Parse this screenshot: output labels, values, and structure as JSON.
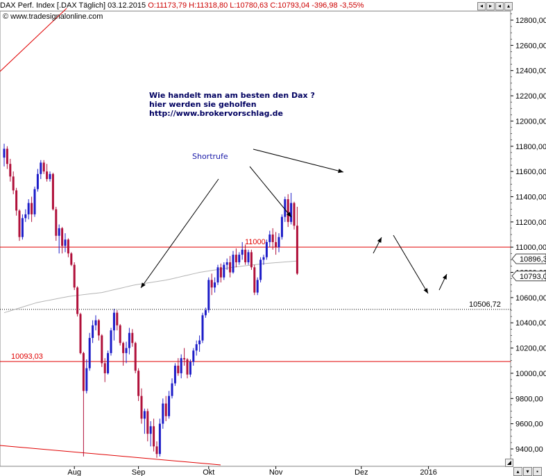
{
  "header": {
    "instrument": "DAX Perf. Index [.DAX  Täglich] 03.12.2015",
    "ohlc": "O:11173,79 H:11318,80 L:10780,63 C:10793,04 -396,98 -3,55%"
  },
  "watermark": "© www.tradesignalonline.com",
  "annotation_lines": [
    "Wie handelt man am besten  den Dax ?",
    "hier werden sie geholfen",
    "http://www.brokervorschlag.de"
  ],
  "shortrufe_label": "Shortrufe",
  "window_buttons": [
    "◂",
    "▸",
    "◂",
    "▴"
  ],
  "colors": {
    "up": "#1c1cc8",
    "down": "#b0103a",
    "hline": "#e00000",
    "ma": "#b4b4b4",
    "grid": "#d0d0d0"
  },
  "chart_data": {
    "type": "candlestick",
    "ylim": [
      9300,
      12950
    ],
    "y_ticks": [
      9400,
      9600,
      9800,
      10000,
      10200,
      10400,
      10600,
      10800,
      11000,
      11200,
      11400,
      11600,
      11800,
      12000,
      12200,
      12400,
      12600,
      12800
    ],
    "y_tick_labels": [
      "9400,00",
      "9600,00",
      "9800,00",
      "10000,00",
      "10200,00",
      "10400,00",
      "10600,00",
      "10800,00",
      "11000,00",
      "11200,00",
      "11400,00",
      "11600,00",
      "11800,00",
      "12000,00",
      "12200,00",
      "12400,00",
      "12600,00",
      "12800,00"
    ],
    "x_labels": [
      {
        "label": "Aug",
        "index": 23
      },
      {
        "label": "Sep",
        "index": 44
      },
      {
        "label": "Okt",
        "index": 67
      },
      {
        "label": "Nov",
        "index": 89
      },
      {
        "label": "Dez",
        "index": 117
      },
      {
        "label": "2016",
        "index": 139
      }
    ],
    "candles": [
      [
        11710,
        11820,
        11640,
        11780
      ],
      [
        11780,
        11800,
        11620,
        11660
      ],
      [
        11660,
        11700,
        11520,
        11560
      ],
      [
        11560,
        11600,
        11420,
        11450
      ],
      [
        11450,
        11470,
        11250,
        11290
      ],
      [
        11290,
        11300,
        11050,
        11080
      ],
      [
        11080,
        11260,
        11060,
        11230
      ],
      [
        11230,
        11300,
        11200,
        11260
      ],
      [
        11260,
        11380,
        11220,
        11350
      ],
      [
        11350,
        11400,
        11200,
        11260
      ],
      [
        11260,
        11480,
        11240,
        11460
      ],
      [
        11460,
        11620,
        11440,
        11580
      ],
      [
        11580,
        11690,
        11540,
        11670
      ],
      [
        11670,
        11690,
        11580,
        11600
      ],
      [
        11600,
        11660,
        11520,
        11540
      ],
      [
        11540,
        11600,
        11520,
        11580
      ],
      [
        11580,
        11590,
        11290,
        11300
      ],
      [
        11300,
        11320,
        11050,
        11090
      ],
      [
        11090,
        11180,
        10950,
        11150
      ],
      [
        11150,
        11160,
        10950,
        11010
      ],
      [
        11010,
        11110,
        10960,
        11060
      ],
      [
        11060,
        11070,
        10920,
        10950
      ],
      [
        10950,
        10960,
        10850,
        10860
      ],
      [
        10860,
        10880,
        10660,
        10680
      ],
      [
        10680,
        10690,
        10450,
        10470
      ],
      [
        10470,
        10480,
        10150,
        10160
      ],
      [
        10160,
        10170,
        9340,
        9860
      ],
      [
        9860,
        10110,
        9840,
        10040
      ],
      [
        10040,
        10320,
        10020,
        10280
      ],
      [
        10280,
        10420,
        10240,
        10380
      ],
      [
        10380,
        10460,
        10340,
        10420
      ],
      [
        10420,
        10430,
        10260,
        10300
      ],
      [
        10300,
        10310,
        10050,
        10080
      ],
      [
        10080,
        10120,
        9930,
        10000
      ],
      [
        10000,
        10180,
        9990,
        10160
      ],
      [
        10160,
        10360,
        10140,
        10340
      ],
      [
        10340,
        10510,
        10260,
        10480
      ],
      [
        10480,
        10500,
        10340,
        10380
      ],
      [
        10380,
        10390,
        10220,
        10240
      ],
      [
        10240,
        10250,
        10060,
        10160
      ],
      [
        10160,
        10250,
        10080,
        10200
      ],
      [
        10200,
        10360,
        10150,
        10320
      ],
      [
        10320,
        10350,
        10210,
        10240
      ],
      [
        10240,
        10250,
        10000,
        10020
      ],
      [
        10020,
        10040,
        9780,
        9820
      ],
      [
        9820,
        9880,
        9600,
        9640
      ],
      [
        9640,
        9720,
        9520,
        9700
      ],
      [
        9700,
        9720,
        9460,
        9520
      ],
      [
        9520,
        9620,
        9420,
        9580
      ],
      [
        9580,
        9640,
        9380,
        9420
      ],
      [
        9420,
        9460,
        9330,
        9360
      ],
      [
        9360,
        9640,
        9340,
        9600
      ],
      [
        9600,
        9800,
        9560,
        9760
      ],
      [
        9760,
        9820,
        9620,
        9660
      ],
      [
        9660,
        9860,
        9640,
        9820
      ],
      [
        9820,
        9960,
        9800,
        9920
      ],
      [
        9920,
        10080,
        9900,
        10060
      ],
      [
        10060,
        10120,
        9980,
        10000
      ],
      [
        10000,
        10150,
        9960,
        10120
      ],
      [
        10120,
        10200,
        10060,
        10110
      ],
      [
        10110,
        10120,
        9960,
        9990
      ],
      [
        9990,
        10110,
        9970,
        10090
      ],
      [
        10090,
        10200,
        10060,
        10180
      ],
      [
        10180,
        10260,
        10140,
        10230
      ],
      [
        10230,
        10300,
        10170,
        10260
      ],
      [
        10260,
        10480,
        10240,
        10460
      ],
      [
        10460,
        10520,
        10440,
        10500
      ],
      [
        10500,
        10760,
        10480,
        10740
      ],
      [
        10740,
        10790,
        10620,
        10680
      ],
      [
        10680,
        10760,
        10640,
        10720
      ],
      [
        10720,
        10860,
        10700,
        10840
      ],
      [
        10840,
        10870,
        10720,
        10760
      ],
      [
        10760,
        10880,
        10740,
        10860
      ],
      [
        10860,
        10910,
        10820,
        10880
      ],
      [
        10880,
        10930,
        10760,
        10800
      ],
      [
        10800,
        10970,
        10790,
        10940
      ],
      [
        10940,
        10990,
        10840,
        10880
      ],
      [
        10880,
        10960,
        10860,
        10940
      ],
      [
        10940,
        11040,
        10900,
        10980
      ],
      [
        10980,
        11020,
        10860,
        10880
      ],
      [
        10880,
        10980,
        10860,
        10960
      ],
      [
        10960,
        10980,
        10820,
        10840
      ],
      [
        10840,
        10860,
        10620,
        10640
      ],
      [
        10640,
        10760,
        10620,
        10740
      ],
      [
        10740,
        10920,
        10720,
        10900
      ],
      [
        10900,
        10940,
        10860,
        10920
      ],
      [
        10920,
        11060,
        10900,
        11040
      ],
      [
        11040,
        11130,
        11000,
        11100
      ],
      [
        11100,
        11150,
        10980,
        11040
      ],
      [
        11040,
        11120,
        10940,
        11000
      ],
      [
        11000,
        11110,
        10960,
        11080
      ],
      [
        11080,
        11260,
        11060,
        11240
      ],
      [
        11240,
        11400,
        11200,
        11380
      ],
      [
        11380,
        11420,
        11160,
        11200
      ],
      [
        11200,
        11430,
        11180,
        11350
      ],
      [
        11350,
        11360,
        11140,
        11170
      ],
      [
        11170,
        11320,
        10780,
        10790
      ]
    ],
    "ma_values": [
      10480,
      10560,
      10610,
      10640,
      10700,
      10740,
      10800,
      10840,
      10870,
      10890
    ],
    "horizontal_lines": [
      {
        "value": 11000,
        "label": "11000",
        "style": "solid"
      },
      {
        "value": 10093.03,
        "label": "10093,03",
        "style": "solid"
      },
      {
        "value": 10506.72,
        "label": "10506,72",
        "style": "dotted"
      }
    ],
    "price_markers": [
      {
        "value": 10896.3,
        "label": "10896,3"
      },
      {
        "value": 10793.04,
        "label": "10793,0"
      }
    ]
  }
}
